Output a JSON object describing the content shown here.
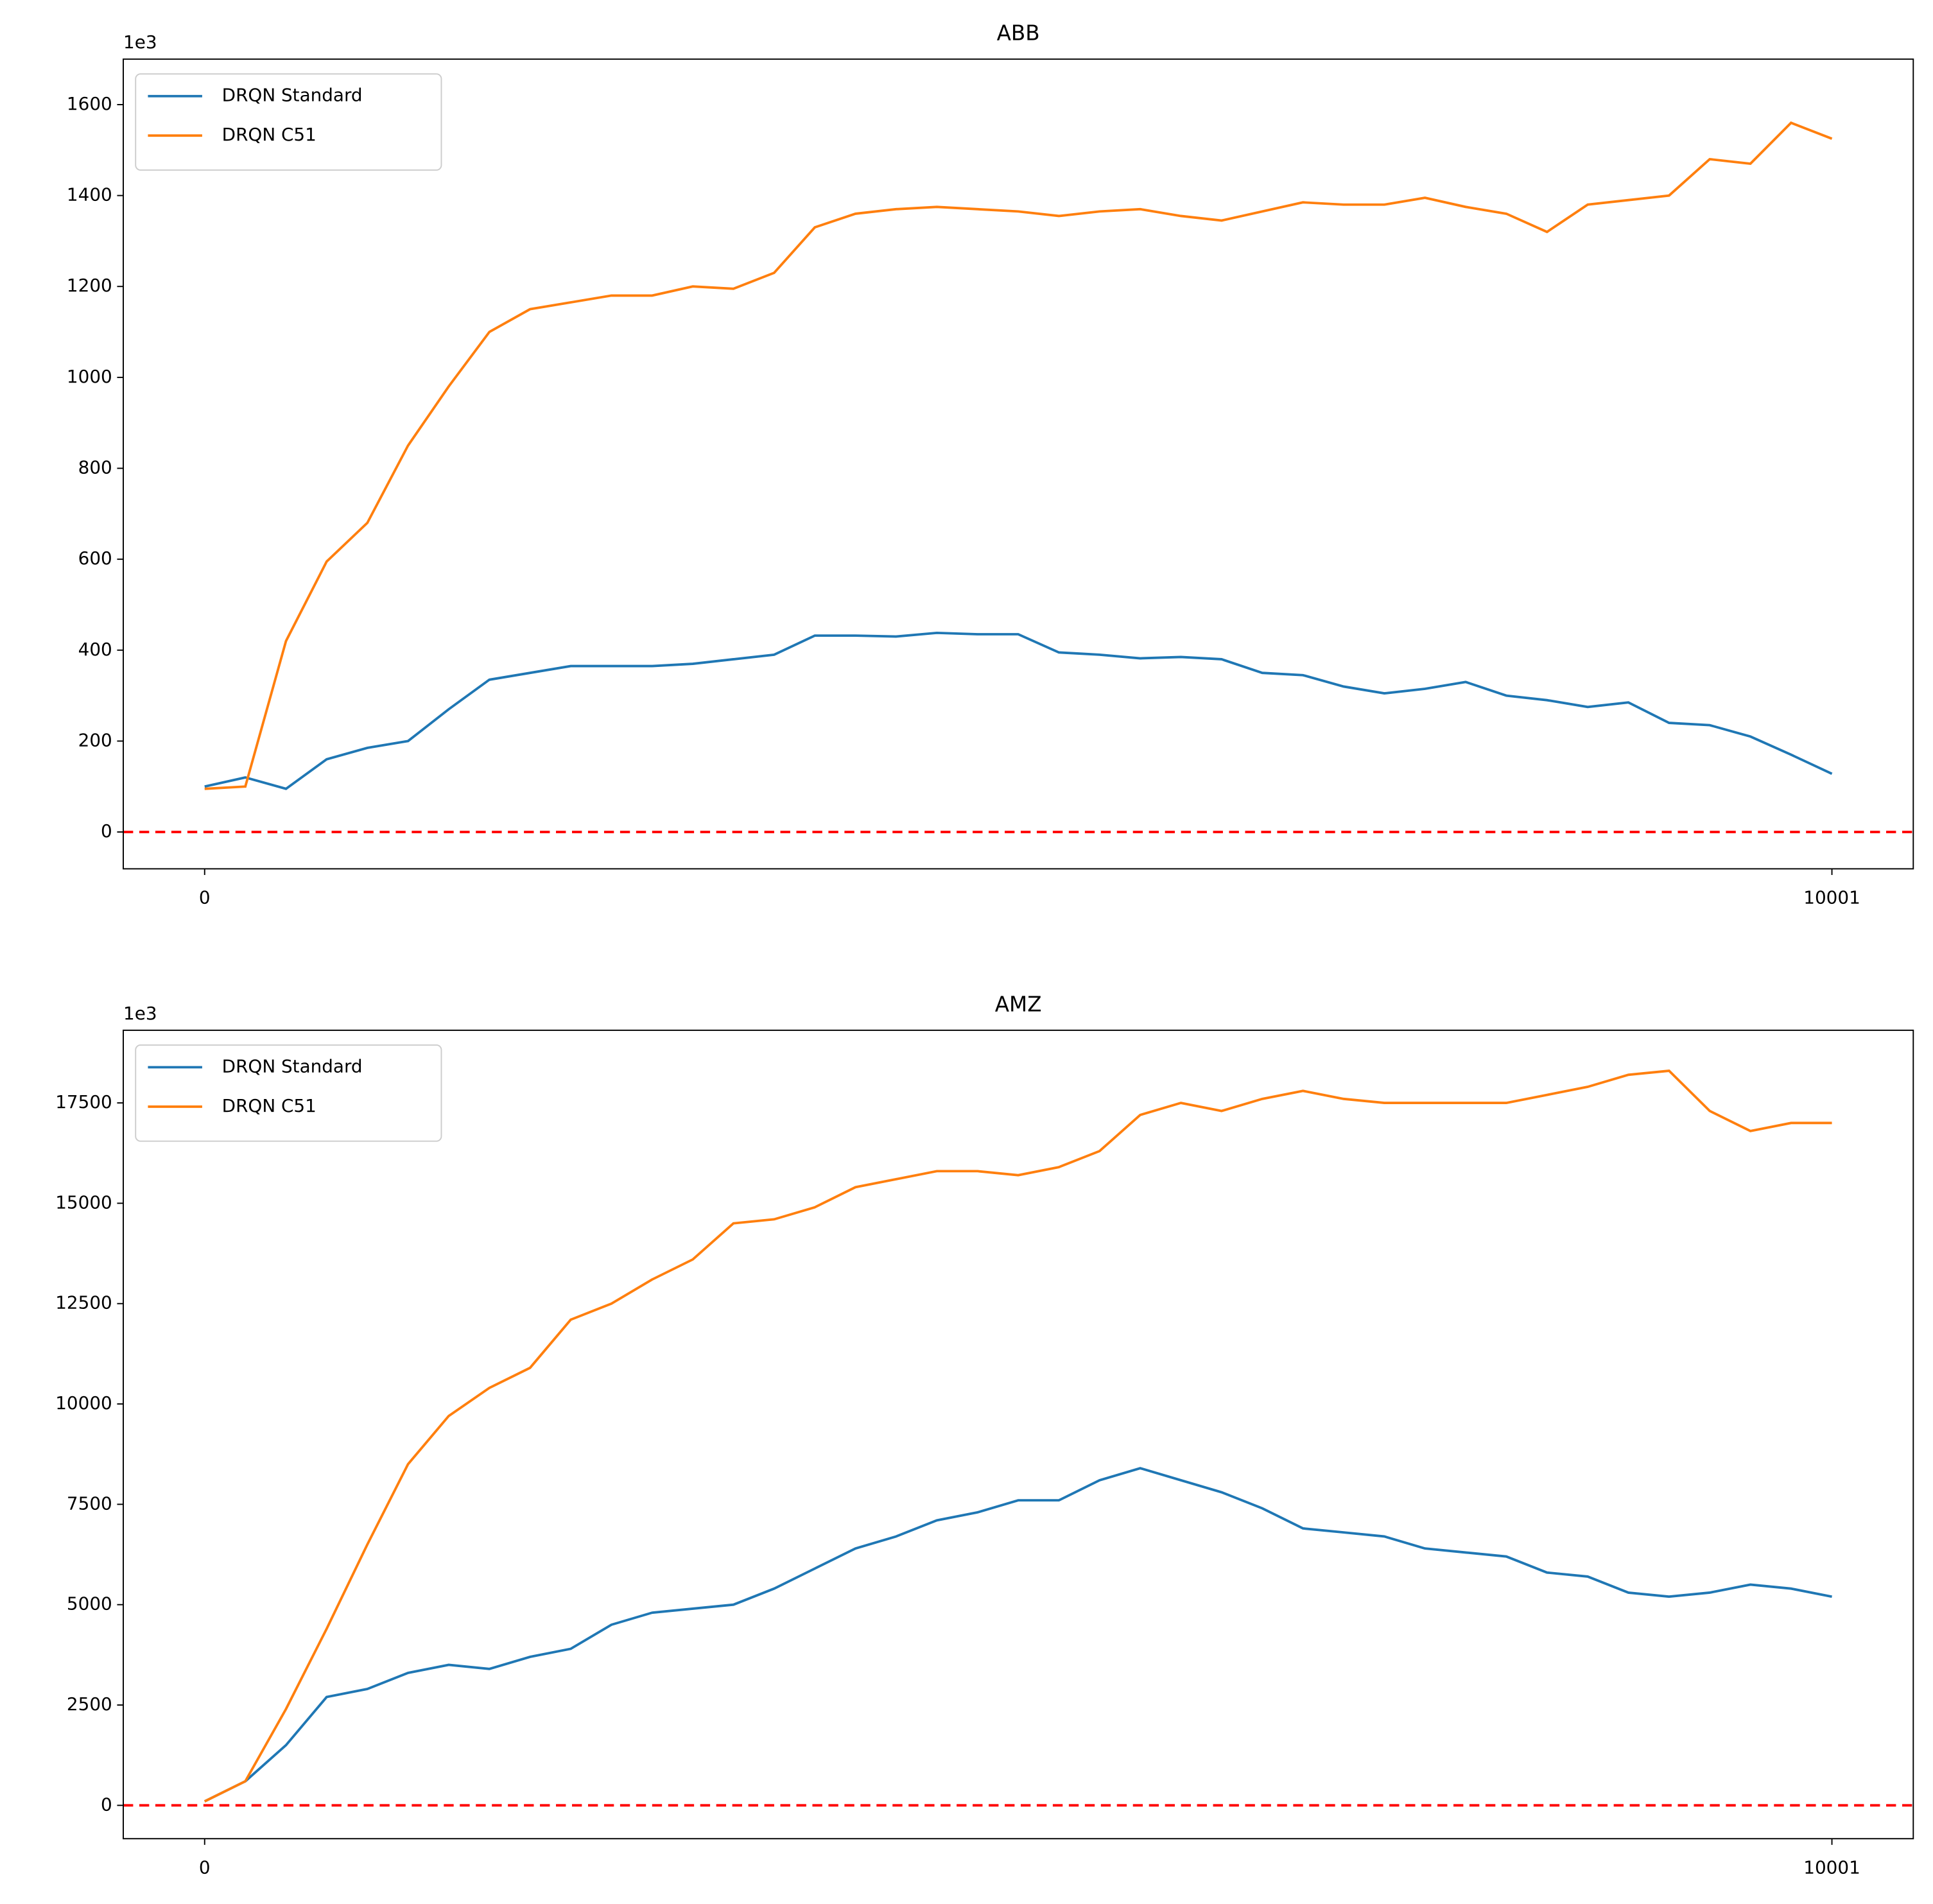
{
  "chart_data": [
    {
      "type": "line",
      "title": "ABB",
      "offset_label": "1e3",
      "x": [
        0,
        250,
        500,
        750,
        1000,
        1250,
        1500,
        1750,
        2000,
        2250,
        2500,
        2750,
        3000,
        3250,
        3500,
        3750,
        4000,
        4250,
        4500,
        4750,
        5000,
        5250,
        5500,
        5750,
        6000,
        6250,
        6500,
        6750,
        7000,
        7250,
        7500,
        7750,
        8000,
        8250,
        8500,
        8750,
        9000,
        9250,
        9500,
        9750,
        10001
      ],
      "series": [
        {
          "name": "DRQN Standard",
          "color": "#1f77b4",
          "values": [
            100,
            120,
            95,
            160,
            185,
            200,
            270,
            335,
            350,
            365,
            365,
            365,
            370,
            380,
            390,
            432,
            432,
            430,
            438,
            435,
            435,
            395,
            390,
            382,
            385,
            380,
            350,
            345,
            320,
            305,
            315,
            330,
            300,
            290,
            275,
            285,
            240,
            235,
            210,
            170,
            128
          ]
        },
        {
          "name": "DRQN C51",
          "color": "#ff7f0e",
          "values": [
            95,
            100,
            420,
            595,
            680,
            850,
            980,
            1100,
            1150,
            1165,
            1180,
            1180,
            1200,
            1195,
            1230,
            1330,
            1360,
            1370,
            1375,
            1370,
            1365,
            1355,
            1365,
            1370,
            1355,
            1345,
            1365,
            1385,
            1380,
            1380,
            1395,
            1375,
            1360,
            1320,
            1380,
            1390,
            1400,
            1480,
            1470,
            1560,
            1525
          ]
        }
      ],
      "xlim": [
        -500,
        10501
      ],
      "ylim": [
        -81,
        1700
      ],
      "xticks": [
        0,
        10001
      ],
      "yticks": [
        0,
        200,
        400,
        600,
        800,
        1000,
        1200,
        1400,
        1600
      ],
      "legend": "upper left",
      "reference_line": {
        "value": 0,
        "color": "#ff0000",
        "dashed": true
      }
    },
    {
      "type": "line",
      "title": "AMZ",
      "offset_label": "1e3",
      "x": [
        0,
        250,
        500,
        750,
        1000,
        1250,
        1500,
        1750,
        2000,
        2250,
        2500,
        2750,
        3000,
        3250,
        3500,
        3750,
        4000,
        4250,
        4500,
        4750,
        5000,
        5250,
        5500,
        5750,
        6000,
        6250,
        6500,
        6750,
        7000,
        7250,
        7500,
        7750,
        8000,
        8250,
        8500,
        8750,
        9000,
        9250,
        9500,
        9750,
        10001
      ],
      "series": [
        {
          "name": "DRQN Standard",
          "color": "#1f77b4",
          "values": [
            100,
            600,
            1500,
            2700,
            2900,
            3300,
            3500,
            3400,
            3700,
            3900,
            4500,
            4800,
            4900,
            5000,
            5400,
            5900,
            6400,
            6700,
            7100,
            7300,
            7600,
            7600,
            8100,
            8400,
            8100,
            7800,
            7400,
            6900,
            6800,
            6700,
            6400,
            6300,
            6200,
            5800,
            5700,
            5300,
            5200,
            5300,
            5500,
            5400,
            5200
          ]
        },
        {
          "name": "DRQN C51",
          "color": "#ff7f0e",
          "values": [
            100,
            600,
            2400,
            4400,
            6500,
            8500,
            9700,
            10400,
            10900,
            12100,
            12500,
            13100,
            13600,
            14500,
            14600,
            14900,
            15400,
            15600,
            15800,
            15800,
            15700,
            15900,
            16300,
            17200,
            17500,
            17300,
            17600,
            17800,
            17600,
            17500,
            17500,
            17500,
            17500,
            17700,
            17900,
            18200,
            18300,
            17300,
            16800,
            17000,
            17000
          ]
        }
      ],
      "xlim": [
        -500,
        10501
      ],
      "ylim": [
        -830,
        19310
      ],
      "xticks": [
        0,
        10001
      ],
      "yticks": [
        0,
        2500,
        5000,
        7500,
        10000,
        12500,
        15000,
        17500
      ],
      "legend": "upper left",
      "reference_line": {
        "value": 0,
        "color": "#ff0000",
        "dashed": true
      }
    }
  ]
}
